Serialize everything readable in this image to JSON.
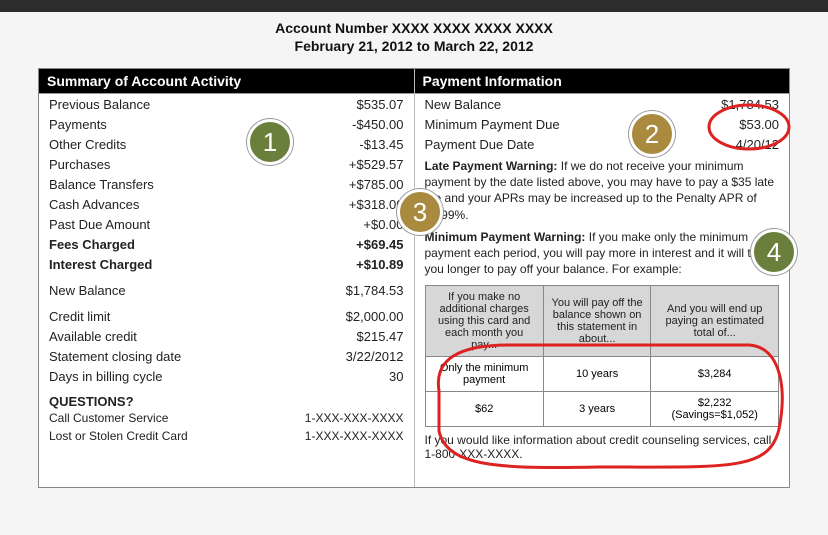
{
  "header": {
    "account_label": "Account Number XXXX XXXX XXXX XXXX",
    "date_range": "February 21, 2012 to March 22, 2012"
  },
  "summary": {
    "heading": "Summary of Account Activity",
    "rows": [
      {
        "label": "Previous Balance",
        "value": "$535.07",
        "bold": false
      },
      {
        "label": "Payments",
        "value": "-$450.00",
        "bold": false
      },
      {
        "label": "Other Credits",
        "value": "-$13.45",
        "bold": false
      },
      {
        "label": "Purchases",
        "value": "+$529.57",
        "bold": false
      },
      {
        "label": "Balance Transfers",
        "value": "+$785.00",
        "bold": false
      },
      {
        "label": "Cash Advances",
        "value": "+$318.00",
        "bold": false
      },
      {
        "label": "Past Due Amount",
        "value": "+$0.00",
        "bold": false
      },
      {
        "label": "Fees Charged",
        "value": "+$69.45",
        "bold": true
      },
      {
        "label": "Interest Charged",
        "value": "+$10.89",
        "bold": true
      }
    ],
    "new_balance": {
      "label": "New Balance",
      "value": "$1,784.53"
    },
    "limits": [
      {
        "label": "Credit limit",
        "value": "$2,000.00"
      },
      {
        "label": "Available credit",
        "value": "$215.47"
      },
      {
        "label": "Statement closing date",
        "value": "3/22/2012"
      },
      {
        "label": "Days in billing cycle",
        "value": "30"
      }
    ]
  },
  "questions": {
    "title": "QUESTIONS?",
    "rows": [
      {
        "label": "Call Customer Service",
        "value": "1-XXX-XXX-XXXX"
      },
      {
        "label": "Lost or Stolen Credit Card",
        "value": "1-XXX-XXX-XXXX"
      }
    ]
  },
  "payment": {
    "heading": "Payment Information",
    "rows": [
      {
        "label": "New Balance",
        "value": "$1,784.53"
      },
      {
        "label": "Minimum Payment Due",
        "value": "$53.00"
      },
      {
        "label": "Payment Due Date",
        "value": "4/20/12"
      }
    ],
    "late_warning_label": "Late Payment Warning:",
    "late_warning_text": " If we do not receive your minimum payment by the date listed above, you may have to pay a $35 late fee and your APRs may be increased up to the Penalty APR of 28.99%.",
    "min_warning_label": "Minimum Payment Warning:",
    "min_warning_text": " If you make only the minimum payment each period, you will pay more in interest and it will take you longer to pay off your balance.  For example:",
    "table": {
      "headers": [
        "If you make no additional charges using this card and each month you pay...",
        "You will pay off the balance shown on this statement in about...",
        "And you will end up paying an estimated total of..."
      ],
      "rows": [
        [
          "Only the minimum payment",
          "10 years",
          "$3,284"
        ],
        [
          "$62",
          "3 years",
          "$2,232\n(Savings=$1,052)"
        ]
      ]
    },
    "footnote": "If you would like information about credit counseling services, call 1-800-XXX-XXXX."
  },
  "callouts": {
    "colors": {
      "green": "#6a7f3b",
      "olive": "#a98a3e"
    },
    "items": [
      {
        "num": "1",
        "color": "#6a7f3b"
      },
      {
        "num": "2",
        "color": "#a98a3e"
      },
      {
        "num": "3",
        "color": "#a98a3e"
      },
      {
        "num": "4",
        "color": "#6a7f3b"
      }
    ],
    "annotation_stroke": "#d22"
  }
}
